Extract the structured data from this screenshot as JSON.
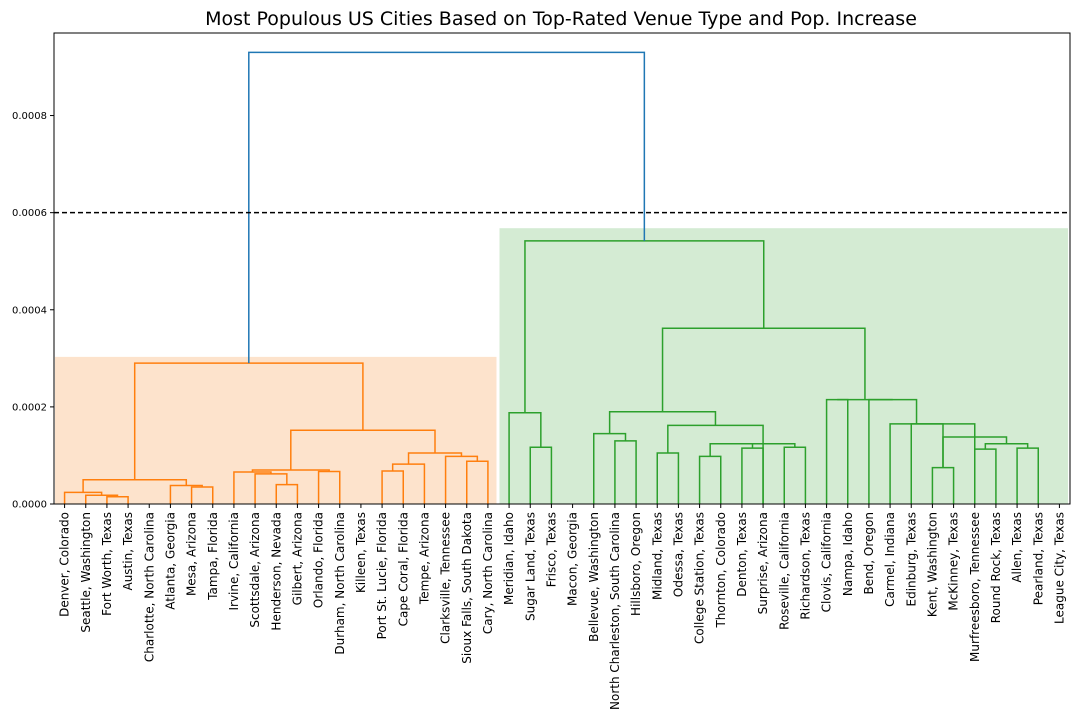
{
  "chart_data": {
    "type": "dendrogram",
    "title": "Most Populous US Cities Based on Top-Rated Venue Type and Pop. Increase",
    "xlabel": "",
    "ylabel": "",
    "ylim": [
      0,
      0.00097
    ],
    "yticks": [
      0.0,
      0.0002,
      0.0004,
      0.0006,
      0.0008
    ],
    "ytick_labels": [
      "0.0000",
      "0.0002",
      "0.0004",
      "0.0006",
      "0.0008"
    ],
    "cut_threshold": 0.0006,
    "grid": false,
    "colors": {
      "cluster_1": "#ff7f0e",
      "cluster_2": "#2ca02c",
      "link_above": "#1f77b4",
      "shade_1": "#fde3cc",
      "shade_2": "#d4ebd3",
      "threshold_line": "#000000"
    },
    "leaves": [
      "Denver, Colorado",
      "Seattle, Washington",
      "Fort Worth, Texas",
      "Austin, Texas",
      "Charlotte, North Carolina",
      "Atlanta, Georgia",
      "Mesa, Arizona",
      "Tampa, Florida",
      "Irvine, California",
      "Scottsdale, Arizona",
      "Henderson, Nevada",
      "Gilbert, Arizona",
      "Orlando, Florida",
      "Durham, North Carolina",
      "Killeen, Texas",
      "Port St. Lucie, Florida",
      "Cape Coral, Florida",
      "Tempe, Arizona",
      "Clarksville, Tennessee",
      "Sioux Falls, South Dakota",
      "Cary, North Carolina",
      "Meridian, Idaho",
      "Sugar Land, Texas",
      "Frisco, Texas",
      "Macon, Georgia",
      "Bellevue, Washington",
      "North Charleston, South Carolina",
      "Hillsboro, Oregon",
      "Midland, Texas",
      "Odessa, Texas",
      "College Station, Texas",
      "Thornton, Colorado",
      "Denton, Texas",
      "Surprise, Arizona",
      "Roseville, California",
      "Richardson, Texas",
      "Clovis, California",
      "Nampa, Idaho",
      "Bend, Oregon",
      "Carmel, Indiana",
      "Edinburg, Texas",
      "Kent, Washington",
      "McKinney, Texas",
      "Murfreesboro, Tennessee",
      "Round Rock, Texas",
      "Allen, Texas",
      "Pearland, Texas",
      "League City, Texas"
    ],
    "links": [
      {
        "x": [
          2,
          3
        ],
        "h": 1.5e-05,
        "c": 1
      },
      {
        "x": [
          1,
          2.5
        ],
        "h": 1.8e-05,
        "c": 1
      },
      {
        "x": [
          0,
          1.75
        ],
        "h": 2.4e-05,
        "c": 1
      },
      {
        "x": [
          6,
          7
        ],
        "h": 3.5e-05,
        "c": 1
      },
      {
        "x": [
          5,
          6.5
        ],
        "h": 3.8e-05,
        "c": 1
      },
      {
        "x": [
          0.875,
          5.75
        ],
        "h": 5e-05,
        "c": 1
      },
      {
        "x": [
          10,
          11
        ],
        "h": 4e-05,
        "c": 1
      },
      {
        "x": [
          9,
          10.5
        ],
        "h": 6.2e-05,
        "c": 1
      },
      {
        "x": [
          8,
          9.75
        ],
        "h": 6.6e-05,
        "c": 1
      },
      {
        "x": [
          12,
          13
        ],
        "h": 6.7e-05,
        "c": 1
      },
      {
        "x": [
          8.875,
          12.5
        ],
        "h": 7e-05,
        "c": 1
      },
      {
        "x": [
          15,
          16
        ],
        "h": 6.8e-05,
        "c": 1
      },
      {
        "x": [
          15.5,
          17
        ],
        "h": 8.2e-05,
        "c": 1
      },
      {
        "x": [
          19,
          20
        ],
        "h": 8.8e-05,
        "c": 1
      },
      {
        "x": [
          18,
          19.5
        ],
        "h": 9.8e-05,
        "c": 1
      },
      {
        "x": [
          16.25,
          18.75
        ],
        "h": 0.000105,
        "c": 1
      },
      {
        "x": [
          10.6875,
          17.5
        ],
        "h": 0.000152,
        "c": 1
      },
      {
        "x": [
          3.3125,
          14.09375
        ],
        "h": 0.00029,
        "c": 1
      },
      {
        "x": [
          22,
          23
        ],
        "h": 0.000117,
        "c": 2
      },
      {
        "x": [
          21,
          22.5
        ],
        "h": 0.000188,
        "c": 2
      },
      {
        "x": [
          26,
          27
        ],
        "h": 0.00013,
        "c": 2
      },
      {
        "x": [
          25,
          26.5
        ],
        "h": 0.000145,
        "c": 2
      },
      {
        "x": [
          28,
          29
        ],
        "h": 0.000105,
        "c": 2
      },
      {
        "x": [
          30,
          31
        ],
        "h": 9.8e-05,
        "c": 2
      },
      {
        "x": [
          32,
          33
        ],
        "h": 0.000115,
        "c": 2
      },
      {
        "x": [
          30.5,
          32.5
        ],
        "h": 0.000124,
        "c": 2
      },
      {
        "x": [
          34,
          35
        ],
        "h": 0.000117,
        "c": 2
      },
      {
        "x": [
          31.5,
          34.5
        ],
        "h": 0.000124,
        "c": 2
      },
      {
        "x": [
          28.5,
          33
        ],
        "h": 0.000162,
        "c": 2
      },
      {
        "x": [
          25.75,
          30.75
        ],
        "h": 0.00019,
        "c": 2
      },
      {
        "x": [
          36,
          37
        ],
        "h": 0.000215,
        "c": 2
      },
      {
        "x": [
          41,
          42
        ],
        "h": 7.5e-05,
        "c": 2
      },
      {
        "x": [
          43,
          44
        ],
        "h": 0.000113,
        "c": 2
      },
      {
        "x": [
          45,
          46
        ],
        "h": 0.000115,
        "c": 2
      },
      {
        "x": [
          43.5,
          45.5
        ],
        "h": 0.000124,
        "c": 2
      },
      {
        "x": [
          41.5,
          44.5
        ],
        "h": 0.000138,
        "c": 2
      },
      {
        "x": [
          40,
          43
        ],
        "h": 0.000165,
        "c": 2
      },
      {
        "x": [
          39,
          41.5
        ],
        "h": 0.000165,
        "c": 2
      },
      {
        "x": [
          38,
          40.25
        ],
        "h": 0.000215,
        "c": 2
      },
      {
        "x": [
          36.5,
          39.125
        ],
        "h": 0.000215,
        "c": 2
      },
      {
        "x": [
          28.25,
          37.8125
        ],
        "h": 0.000362,
        "c": 2
      },
      {
        "x": [
          21.75,
          33.03125
        ],
        "h": 0.000542,
        "c": 2
      },
      {
        "x": [
          8.703125,
          27.390625
        ],
        "h": 0.00093,
        "c": 0
      }
    ],
    "cluster_regions": [
      {
        "from": 0,
        "to": 20,
        "top": 0.000303,
        "c": 1
      },
      {
        "from": 21,
        "to": 47,
        "top": 0.000568,
        "c": 2
      }
    ]
  }
}
